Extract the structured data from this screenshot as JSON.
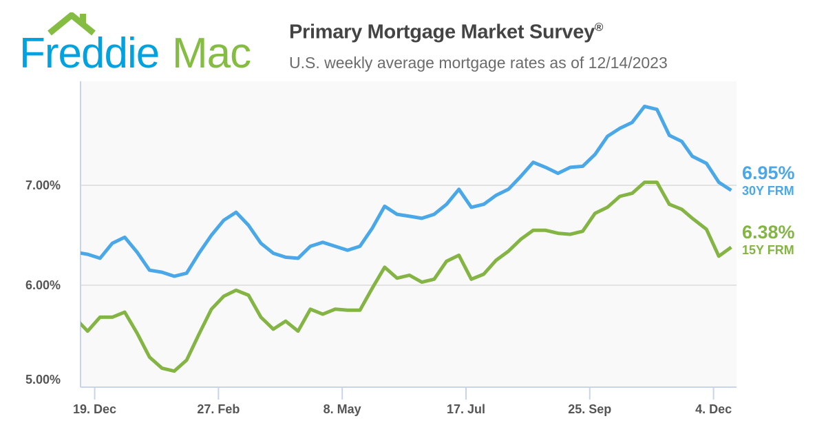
{
  "logo": {
    "text_blue": "Freddie",
    "text_green": "Mac",
    "colors": {
      "blue": "#00A3E0",
      "green": "#84BD41"
    }
  },
  "header": {
    "title": "Primary Mortgage Market Survey",
    "title_mark": "®",
    "subtitle": "U.S. weekly average mortgage rates as of 12/14/2023"
  },
  "chart_data": {
    "type": "line",
    "title": "Primary Mortgage Market Survey®",
    "subtitle": "U.S. weekly average mortgage rates as of 12/14/2023",
    "xlabel": "",
    "ylabel": "",
    "ylim": [
      5.0,
      8.05
    ],
    "xlim": [
      "2022-12-11",
      "2023-12-17"
    ],
    "grid": true,
    "y_ticks": [
      {
        "value": 5,
        "label": "5.00%"
      },
      {
        "value": 6,
        "label": "6.00%"
      },
      {
        "value": 7,
        "label": "7.00%"
      }
    ],
    "x_ticks": [
      {
        "date": "2022-12-19",
        "label": "19. Dec"
      },
      {
        "date": "2023-02-27",
        "label": "27. Feb"
      },
      {
        "date": "2023-05-08",
        "label": "8. May"
      },
      {
        "date": "2023-07-17",
        "label": "17. Jul"
      },
      {
        "date": "2023-09-25",
        "label": "25. Sep"
      },
      {
        "date": "2023-12-04",
        "label": "4. Dec"
      }
    ],
    "x": [
      "2022-12-08",
      "2022-12-15",
      "2022-12-22",
      "2022-12-29",
      "2023-01-05",
      "2023-01-12",
      "2023-01-19",
      "2023-01-26",
      "2023-02-02",
      "2023-02-09",
      "2023-02-16",
      "2023-02-23",
      "2023-03-02",
      "2023-03-09",
      "2023-03-16",
      "2023-03-23",
      "2023-03-30",
      "2023-04-06",
      "2023-04-13",
      "2023-04-20",
      "2023-04-27",
      "2023-05-04",
      "2023-05-11",
      "2023-05-18",
      "2023-05-25",
      "2023-06-01",
      "2023-06-08",
      "2023-06-15",
      "2023-06-22",
      "2023-06-29",
      "2023-07-06",
      "2023-07-13",
      "2023-07-20",
      "2023-07-27",
      "2023-08-03",
      "2023-08-10",
      "2023-08-17",
      "2023-08-24",
      "2023-08-31",
      "2023-09-07",
      "2023-09-14",
      "2023-09-21",
      "2023-09-28",
      "2023-10-05",
      "2023-10-12",
      "2023-10-19",
      "2023-10-26",
      "2023-11-02",
      "2023-11-09",
      "2023-11-16",
      "2023-11-22",
      "2023-11-30",
      "2023-12-07",
      "2023-12-14"
    ],
    "series": [
      {
        "name": "30Y FRM",
        "color": "#4BA8E8",
        "end_label": "6.95%",
        "values": [
          6.33,
          6.31,
          6.27,
          6.42,
          6.48,
          6.33,
          6.15,
          6.13,
          6.09,
          6.12,
          6.32,
          6.5,
          6.65,
          6.73,
          6.6,
          6.42,
          6.32,
          6.28,
          6.27,
          6.39,
          6.43,
          6.39,
          6.35,
          6.39,
          6.57,
          6.79,
          6.71,
          6.69,
          6.67,
          6.71,
          6.81,
          6.96,
          6.78,
          6.81,
          6.9,
          6.96,
          7.09,
          7.23,
          7.18,
          7.12,
          7.18,
          7.19,
          7.31,
          7.49,
          7.57,
          7.63,
          7.79,
          7.76,
          7.5,
          7.44,
          7.29,
          7.22,
          7.03,
          6.95
        ]
      },
      {
        "name": "15Y FRM",
        "color": "#84B544",
        "end_label": "6.38%",
        "values": [
          5.67,
          5.54,
          5.68,
          5.68,
          5.73,
          5.52,
          5.28,
          5.17,
          5.14,
          5.25,
          5.51,
          5.76,
          5.89,
          5.95,
          5.9,
          5.68,
          5.56,
          5.64,
          5.54,
          5.76,
          5.71,
          5.76,
          5.75,
          5.75,
          5.97,
          6.18,
          6.07,
          6.1,
          6.03,
          6.06,
          6.24,
          6.3,
          6.06,
          6.11,
          6.25,
          6.34,
          6.46,
          6.55,
          6.55,
          6.52,
          6.51,
          6.54,
          6.72,
          6.78,
          6.89,
          6.92,
          7.03,
          7.03,
          6.81,
          6.76,
          6.67,
          6.56,
          6.29,
          6.38
        ]
      }
    ]
  }
}
